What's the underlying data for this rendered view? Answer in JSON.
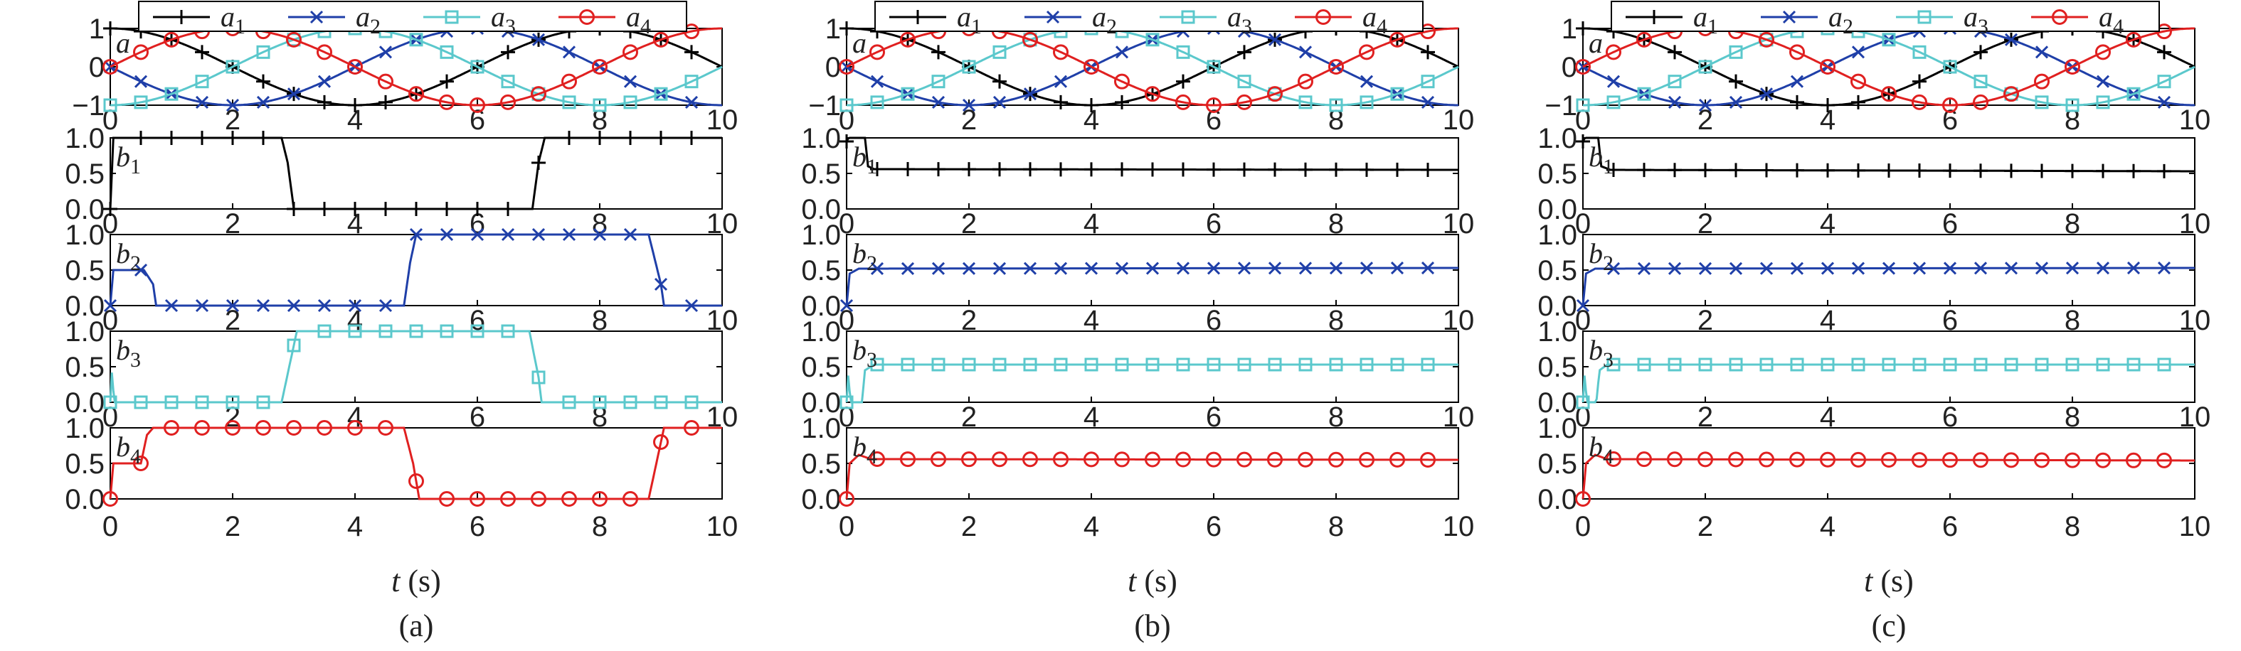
{
  "figure": {
    "xlabel": "t (s)",
    "captions": [
      "(a)",
      "(b)",
      "(c)"
    ],
    "legend": [
      {
        "label": "a1",
        "color": "#000000",
        "marker": "plus"
      },
      {
        "label": "a2",
        "color": "#1f3fa8",
        "marker": "x"
      },
      {
        "label": "a3",
        "color": "#5bc8cc",
        "marker": "square"
      },
      {
        "label": "a4",
        "color": "#e02020",
        "marker": "circle"
      }
    ]
  },
  "chart_data": [
    {
      "type": "line",
      "panel": "(a)",
      "x_range": [
        0,
        10
      ],
      "x_ticks": [
        "0",
        "2",
        "4",
        "6",
        "8",
        "10"
      ],
      "subplots": [
        {
          "label": "a",
          "y_range": [
            -1,
            1
          ],
          "y_ticks": [
            "1",
            "0",
            "−1"
          ],
          "series": [
            {
              "name": "a1",
              "function": "cos(pi*t/4)"
            },
            {
              "name": "a2",
              "function": "-cos(pi*(t-2)/4)"
            },
            {
              "name": "a3",
              "function": "-cos(pi*t/4)"
            },
            {
              "name": "a4",
              "function": "cos(pi*(t-2)/4)"
            }
          ]
        },
        {
          "label": "b1",
          "y_range": [
            0,
            1
          ],
          "y_ticks": [
            "1.0",
            "0.5",
            "0.0"
          ],
          "series": [
            {
              "name": "a1",
              "points": [
                [
                  0,
                  0
                ],
                [
                  0.05,
                  1
                ],
                [
                  2.8,
                  1
                ],
                [
                  2.9,
                  0.65
                ],
                [
                  3.0,
                  0
                ],
                [
                  6.9,
                  0
                ],
                [
                  7.0,
                  0.65
                ],
                [
                  7.1,
                  1
                ],
                [
                  10,
                  1
                ]
              ]
            }
          ]
        },
        {
          "label": "b2",
          "y_range": [
            0,
            1
          ],
          "y_ticks": [
            "1.0",
            "0.5",
            "0.0"
          ],
          "series": [
            {
              "name": "a2",
              "points": [
                [
                  0,
                  0
                ],
                [
                  0.05,
                  0.5
                ],
                [
                  0.55,
                  0.5
                ],
                [
                  0.7,
                  0.3
                ],
                [
                  0.75,
                  0
                ],
                [
                  4.8,
                  0
                ],
                [
                  4.9,
                  0.6
                ],
                [
                  5.0,
                  1
                ],
                [
                  8.8,
                  1
                ],
                [
                  9.0,
                  0.3
                ],
                [
                  9.05,
                  0
                ],
                [
                  10,
                  0
                ]
              ]
            }
          ]
        },
        {
          "label": "b3",
          "y_range": [
            0,
            1
          ],
          "y_ticks": [
            "1.0",
            "0.5",
            "0.0"
          ],
          "series": [
            {
              "name": "a3",
              "points": [
                [
                  0,
                  0
                ],
                [
                  0.03,
                  0.5
                ],
                [
                  0.06,
                  0
                ],
                [
                  2.8,
                  0
                ],
                [
                  2.95,
                  0.6
                ],
                [
                  3.05,
                  1
                ],
                [
                  6.85,
                  1
                ],
                [
                  7.0,
                  0.35
                ],
                [
                  7.05,
                  0
                ],
                [
                  10,
                  0
                ]
              ]
            }
          ]
        },
        {
          "label": "b4",
          "y_range": [
            0,
            1
          ],
          "y_ticks": [
            "1.0",
            "0.5",
            "0.0"
          ],
          "series": [
            {
              "name": "a4",
              "points": [
                [
                  0,
                  0
                ],
                [
                  0.05,
                  0.5
                ],
                [
                  0.5,
                  0.5
                ],
                [
                  0.6,
                  0.9
                ],
                [
                  0.7,
                  1
                ],
                [
                  4.8,
                  1
                ],
                [
                  4.95,
                  0.5
                ],
                [
                  5.05,
                  0
                ],
                [
                  8.8,
                  0
                ],
                [
                  8.95,
                  0.6
                ],
                [
                  9.05,
                  1
                ],
                [
                  10,
                  1
                ]
              ]
            }
          ]
        }
      ]
    },
    {
      "type": "line",
      "panel": "(b)",
      "x_range": [
        0,
        10
      ],
      "x_ticks": [
        "0",
        "2",
        "4",
        "6",
        "8",
        "10"
      ],
      "subplots": [
        {
          "label": "a",
          "y_range": [
            -1,
            1
          ],
          "y_ticks": [
            "1",
            "0",
            "−1"
          ],
          "series": [
            {
              "name": "a1",
              "function": "cos(pi*t/4)"
            },
            {
              "name": "a2",
              "function": "-cos(pi*(t-2)/4)"
            },
            {
              "name": "a3",
              "function": "-cos(pi*t/4)"
            },
            {
              "name": "a4",
              "function": "cos(pi*(t-2)/4)"
            }
          ]
        },
        {
          "label": "b1",
          "y_range": [
            0,
            1
          ],
          "y_ticks": [
            "1.0",
            "0.5",
            "0.0"
          ],
          "series": [
            {
              "name": "a1",
              "points": [
                [
                  0,
                  0.95
                ],
                [
                  0.03,
                  1
                ],
                [
                  0.3,
                  1
                ],
                [
                  0.35,
                  0.6
                ],
                [
                  0.45,
                  0.56
                ],
                [
                  10,
                  0.55
                ]
              ]
            }
          ]
        },
        {
          "label": "b2",
          "y_range": [
            0,
            1
          ],
          "y_ticks": [
            "1.0",
            "0.5",
            "0.0"
          ],
          "series": [
            {
              "name": "a2",
              "points": [
                [
                  0,
                  0
                ],
                [
                  0.05,
                  0.45
                ],
                [
                  0.2,
                  0.52
                ],
                [
                  10,
                  0.53
                ]
              ]
            }
          ]
        },
        {
          "label": "b3",
          "y_range": [
            0,
            1
          ],
          "y_ticks": [
            "1.0",
            "0.5",
            "0.0"
          ],
          "series": [
            {
              "name": "a3",
              "points": [
                [
                  0,
                  0
                ],
                [
                  0.03,
                  0.45
                ],
                [
                  0.06,
                  0
                ],
                [
                  0.25,
                  0
                ],
                [
                  0.3,
                  0.45
                ],
                [
                  0.45,
                  0.53
                ],
                [
                  10,
                  0.53
                ]
              ]
            }
          ]
        },
        {
          "label": "b4",
          "y_range": [
            0,
            1
          ],
          "y_ticks": [
            "1.0",
            "0.5",
            "0.0"
          ],
          "series": [
            {
              "name": "a4",
              "points": [
                [
                  0,
                  0
                ],
                [
                  0.05,
                  0.5
                ],
                [
                  0.2,
                  0.62
                ],
                [
                  0.4,
                  0.56
                ],
                [
                  10,
                  0.55
                ]
              ]
            }
          ]
        }
      ]
    },
    {
      "type": "line",
      "panel": "(c)",
      "x_range": [
        0,
        10
      ],
      "x_ticks": [
        "0",
        "2",
        "4",
        "6",
        "8",
        "10"
      ],
      "subplots": [
        {
          "label": "a",
          "y_range": [
            -1,
            1
          ],
          "y_ticks": [
            "1",
            "0",
            "−1"
          ],
          "series": [
            {
              "name": "a1",
              "function": "cos(pi*t/4)"
            },
            {
              "name": "a2",
              "function": "-cos(pi*(t-2)/4)"
            },
            {
              "name": "a3",
              "function": "-cos(pi*t/4)"
            },
            {
              "name": "a4",
              "function": "cos(pi*(t-2)/4)"
            }
          ]
        },
        {
          "label": "b1",
          "y_range": [
            0,
            1
          ],
          "y_ticks": [
            "1.0",
            "0.5",
            "0.0"
          ],
          "series": [
            {
              "name": "a1",
              "points": [
                [
                  0,
                  0.95
                ],
                [
                  0.03,
                  1
                ],
                [
                  0.25,
                  1
                ],
                [
                  0.3,
                  0.6
                ],
                [
                  0.45,
                  0.55
                ],
                [
                  10,
                  0.53
                ]
              ]
            }
          ]
        },
        {
          "label": "b2",
          "y_range": [
            0,
            1
          ],
          "y_ticks": [
            "1.0",
            "0.5",
            "0.0"
          ],
          "series": [
            {
              "name": "a2",
              "points": [
                [
                  0,
                  0
                ],
                [
                  0.05,
                  0.45
                ],
                [
                  0.2,
                  0.52
                ],
                [
                  10,
                  0.53
                ]
              ]
            }
          ]
        },
        {
          "label": "b3",
          "y_range": [
            0,
            1
          ],
          "y_ticks": [
            "1.0",
            "0.5",
            "0.0"
          ],
          "series": [
            {
              "name": "a3",
              "points": [
                [
                  0,
                  0
                ],
                [
                  0.03,
                  0.45
                ],
                [
                  0.06,
                  0
                ],
                [
                  0.22,
                  0
                ],
                [
                  0.27,
                  0.45
                ],
                [
                  0.4,
                  0.53
                ],
                [
                  10,
                  0.53
                ]
              ]
            }
          ]
        },
        {
          "label": "b4",
          "y_range": [
            0,
            1
          ],
          "y_ticks": [
            "1.0",
            "0.5",
            "0.0"
          ],
          "series": [
            {
              "name": "a4",
              "points": [
                [
                  0,
                  0
                ],
                [
                  0.05,
                  0.5
                ],
                [
                  0.2,
                  0.62
                ],
                [
                  0.4,
                  0.56
                ],
                [
                  10,
                  0.54
                ]
              ]
            }
          ]
        }
      ]
    }
  ]
}
